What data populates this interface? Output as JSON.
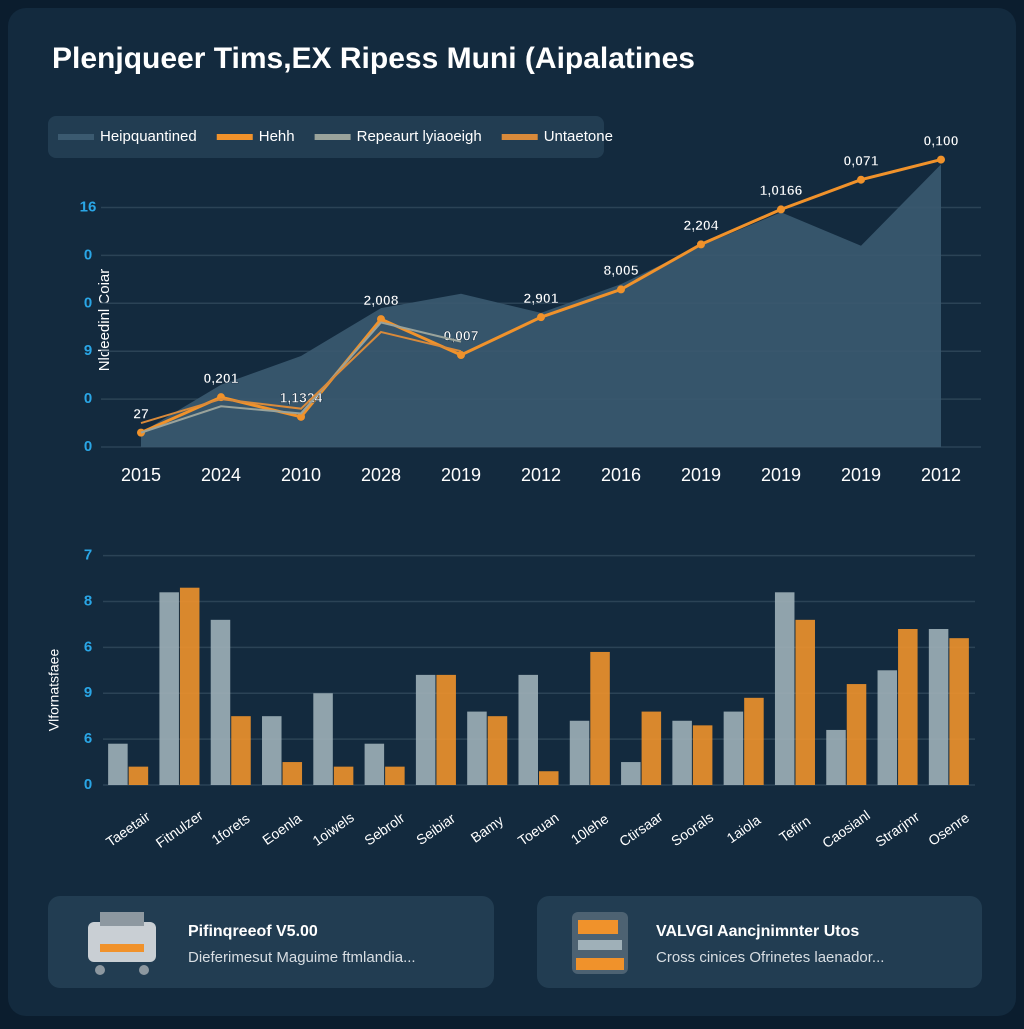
{
  "chart_data": [
    {
      "type": "line",
      "title": "Plenjqueer Tims,EX Ripess Muni (Aipalatines",
      "y_label": "Nldeedinl Coiar",
      "categories": [
        "2015",
        "2024",
        "2010",
        "2028",
        "2019",
        "2012",
        "2016",
        "2019",
        "2019",
        "2019",
        "2012"
      ],
      "series": [
        {
          "name": "Heipquantined",
          "color": "#3b5a70",
          "area": true,
          "values": [
            0.3,
            1.3,
            1.9,
            2.9,
            3.2,
            2.8,
            3.4,
            4.2,
            4.9,
            4.2,
            5.9
          ]
        },
        {
          "name": "Hehh",
          "color": "#f0922b",
          "values": [
            0.3,
            1.04,
            0.63,
            2.67,
            1.92,
            2.71,
            3.29,
            4.23,
            4.96,
            5.58,
            6.0
          ]
        },
        {
          "name": "Repeaurt lyiaoeigh",
          "color": "#9aa39b",
          "values": [
            0.3,
            0.85,
            0.7,
            2.6,
            2.2,
            null,
            null,
            null,
            null,
            null,
            null
          ]
        },
        {
          "name": "Untaetone",
          "color": "#d98a3a",
          "values": [
            0.5,
            1.0,
            0.8,
            2.4,
            2.0,
            null,
            null,
            null,
            null,
            null,
            null
          ]
        }
      ],
      "point_notes": [
        "27",
        "0,201",
        "1,1324",
        "2,008",
        "0,007",
        "2,901",
        "8,005",
        "2,204",
        "1,0166",
        "0,071",
        "0,100"
      ],
      "ylim": [
        0,
        6.2
      ],
      "yticks": [
        {
          "value": 0,
          "label": "0"
        },
        {
          "value": 1,
          "label": "0"
        },
        {
          "value": 2,
          "label": "9"
        },
        {
          "value": 3,
          "label": "0"
        },
        {
          "value": 4,
          "label": "0"
        },
        {
          "value": 5,
          "label": "16"
        }
      ],
      "grid": true
    },
    {
      "type": "bar",
      "y_label": "Vlfornatsfaee",
      "categories": [
        "Taeetair",
        "Fitnulzer",
        "1forets",
        "Eoenla",
        "1oiwels",
        "Sebrolr",
        "Seibiar",
        "Bamy",
        "Toeuan",
        "10lehe",
        "Ctirsaar",
        "Soorals",
        "1aiola",
        "Tefirn",
        "Caosianl",
        "Strarjmr",
        "Osenre"
      ],
      "series": [
        {
          "name": "Heipquantined",
          "color": "#9fb0b8",
          "values": [
            0.9,
            4.2,
            3.6,
            1.5,
            2.0,
            0.9,
            2.4,
            1.6,
            2.4,
            1.4,
            0.5,
            1.4,
            1.6,
            4.2,
            1.2,
            2.5,
            3.4
          ]
        },
        {
          "name": "Hehh",
          "color": "#f0922b",
          "values": [
            0.4,
            4.3,
            1.5,
            0.5,
            0.4,
            0.4,
            2.4,
            1.5,
            0.3,
            2.9,
            1.6,
            1.3,
            1.9,
            3.6,
            2.2,
            3.4,
            3.2
          ]
        }
      ],
      "ylim": [
        0,
        5.1
      ],
      "yticks": [
        {
          "value": 0,
          "label": "0"
        },
        {
          "value": 1,
          "label": "6"
        },
        {
          "value": 2,
          "label": "9"
        },
        {
          "value": 3,
          "label": "6"
        },
        {
          "value": 4,
          "label": "8"
        },
        {
          "value": 5,
          "label": "7"
        }
      ],
      "grid": true
    }
  ],
  "cards": [
    {
      "title": "Pifinqreeof V5.00",
      "subtitle": "Dieferimesut Maguime ftmlandia..."
    },
    {
      "title": "VALVGI Aancjnimnter Utos",
      "subtitle": "Cross cinices Ofrinetes laenador..."
    }
  ]
}
